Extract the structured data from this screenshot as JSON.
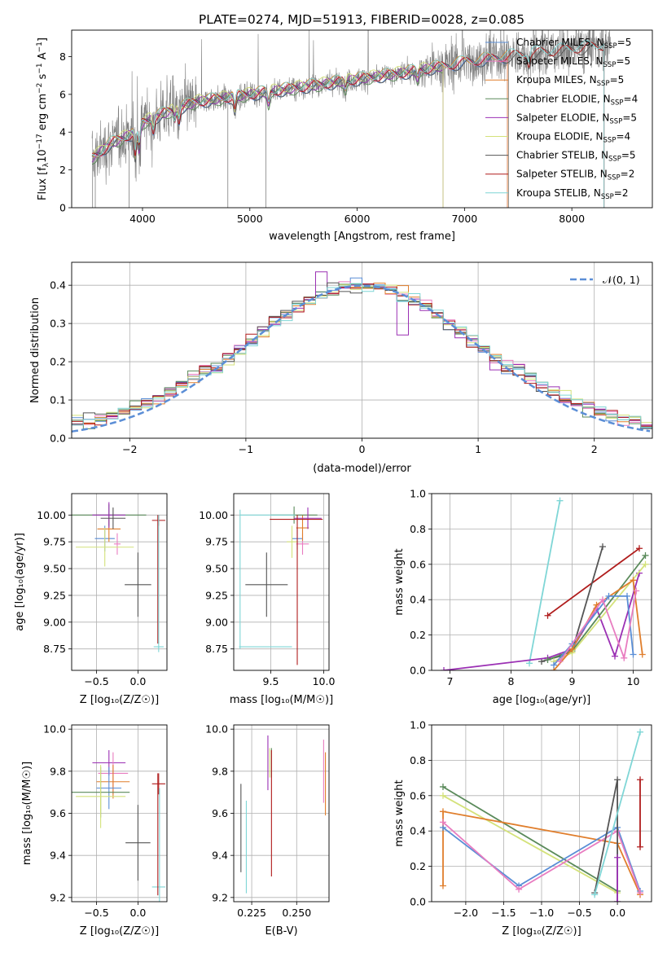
{
  "figure": {
    "title": "PLATE=0274, MJD=51913, FIBERID=0028, z=0.085",
    "colors": {
      "Chabrier MILES": "#5a8ed6",
      "Salpeter MILES": "#e87cc0",
      "Kroupa MILES": "#e07e2c",
      "Chabrier ELODIE": "#5a8a5a",
      "Salpeter ELODIE": "#9b30b4",
      "Kroupa ELODIE": "#d4e27a",
      "Chabrier STELIB": "#555555",
      "Salpeter STELIB": "#b01c1c",
      "Kroupa STELIB": "#7fd6d6",
      "data": "#808080",
      "gaussian": "#5b8ed6"
    },
    "legend_prefixes": [
      "Chabrier MILES, N",
      "Salpeter MILES, N",
      "Kroupa MILES, N",
      "Chabrier ELODIE, N",
      "Salpeter ELODIE, N",
      "Kroupa ELODIE, N",
      "Chabrier STELIB, N",
      "Salpeter STELIB, N",
      "Kroupa STELIB, N"
    ],
    "legend_subscript": "SSP",
    "legend_suffixes": [
      "=5",
      "=5",
      "=5",
      "=4",
      "=5",
      "=4",
      "=5",
      "=2",
      "=2"
    ]
  },
  "chart_data": [
    {
      "id": "spectrum",
      "type": "line",
      "title": "PLATE=0274, MJD=51913, FIBERID=0028, z=0.085",
      "xlabel": "wavelength [Angstrom, rest frame]",
      "ylabel_pre": "Flux [f",
      "ylabel_sub": "λ",
      "ylabel_mid": "10",
      "ylabel_sup1": "−17",
      "ylabel_mid2": " erg cm",
      "ylabel_sup2": "−2",
      "ylabel_mid3": " s",
      "ylabel_sup3": "−1",
      "ylabel_post": " A",
      "ylabel_sup4": "−1",
      "ylabel_end": "]",
      "xlim": [
        3340,
        8750
      ],
      "ylim": [
        0,
        9.4
      ],
      "xticks": [
        "4000",
        "5000",
        "6000",
        "7000",
        "8000"
      ],
      "yticks": [
        "0",
        "2",
        "4",
        "6",
        "8"
      ],
      "continuum_knots": [
        [
          3520,
          2.6
        ],
        [
          3600,
          2.9
        ],
        [
          3700,
          3.4
        ],
        [
          3900,
          3.9
        ],
        [
          4000,
          4.5
        ],
        [
          4200,
          5.0
        ],
        [
          4500,
          5.6
        ],
        [
          5000,
          6.0
        ],
        [
          5500,
          6.4
        ],
        [
          6000,
          6.8
        ],
        [
          6500,
          7.2
        ],
        [
          7000,
          7.7
        ],
        [
          7500,
          8.1
        ],
        [
          8000,
          8.4
        ],
        [
          8300,
          8.6
        ]
      ],
      "series_names": [
        "Chabrier MILES",
        "Salpeter MILES",
        "Kroupa MILES",
        "Chabrier ELODIE",
        "Salpeter ELODIE",
        "Kroupa ELODIE",
        "Chabrier STELIB",
        "Salpeter STELIB",
        "Kroupa STELIB"
      ],
      "series_ranges": [
        [
          3530,
          7400
        ],
        [
          3530,
          7400
        ],
        [
          3530,
          7400
        ],
        [
          3530,
          6800
        ],
        [
          3530,
          6800
        ],
        [
          3530,
          6800
        ],
        [
          3530,
          8300
        ],
        [
          3530,
          8300
        ],
        [
          3530,
          8300
        ]
      ],
      "legend": "upper right"
    },
    {
      "id": "residuals",
      "type": "step",
      "xlabel": "(data-model)/error",
      "ylabel": "Normed distribution",
      "xlim": [
        -2.5,
        2.5
      ],
      "ylim": [
        0,
        0.46
      ],
      "xticks": [
        "−2",
        "−1",
        "0",
        "1",
        "2"
      ],
      "yticks": [
        "0.0",
        "0.1",
        "0.2",
        "0.3",
        "0.4"
      ],
      "gaussian_label": "𝒩(0, 1)",
      "bin_width": 0.1,
      "grid": true,
      "legend": "upper right"
    },
    {
      "id": "age_vs_Z",
      "type": "errorbar",
      "xlabel": "Z [log₁₀(Z/Z☉)]",
      "ylabel": "age  [log₁₀(age/yr)]",
      "xlim": [
        -0.8,
        0.35
      ],
      "ylim": [
        8.55,
        10.2
      ],
      "xticks": [
        "−0.5",
        "0.0"
      ],
      "yticks": [
        "8.75",
        "9.00",
        "9.25",
        "9.50",
        "9.75",
        "10.00"
      ],
      "points": [
        {
          "s": "Chabrier MILES",
          "x": -0.4,
          "xe": 0.12,
          "y": 9.78,
          "ye": 0.12
        },
        {
          "s": "Salpeter MILES",
          "x": -0.25,
          "xe": 0.04,
          "y": 9.73,
          "ye": 0.1
        },
        {
          "s": "Kroupa MILES",
          "x": -0.35,
          "xe": 0.14,
          "y": 9.87,
          "ye": 0.12
        },
        {
          "s": "Chabrier ELODIE",
          "x": -0.35,
          "xe": 0.45,
          "y": 10.0,
          "ye": 0.1
        },
        {
          "s": "Salpeter ELODIE",
          "x": -0.35,
          "xe": 0.2,
          "y": 10.0,
          "ye": 0.12
        },
        {
          "s": "Kroupa ELODIE",
          "x": -0.4,
          "xe": 0.35,
          "y": 9.7,
          "ye": 0.18
        },
        {
          "s": "Chabrier STELIB",
          "x": 0.0,
          "xe": 0.16,
          "y": 9.35,
          "ye": 0.3
        },
        {
          "s": "Salpeter STELIB",
          "x": 0.25,
          "xe": 0.08,
          "y": 9.95,
          "ye": 0.05
        },
        {
          "s": "Kroupa STELIB",
          "x": 0.25,
          "xe": 0.06,
          "y": 8.77,
          "ye": 0.05
        },
        {
          "s": "Chabrier STELIB",
          "x": -0.3,
          "xe": 0.15,
          "y": 9.97,
          "ye": 0.1
        },
        {
          "s": "Salpeter STELIB",
          "x": 0.24,
          "xe": 0.0,
          "y": 9.4,
          "ye": 0.6
        },
        {
          "s": "Kroupa STELIB",
          "x": 0.25,
          "xe": 0.0,
          "y": 9.4,
          "ye": 0.6
        }
      ]
    },
    {
      "id": "age_vs_mass",
      "type": "errorbar",
      "xlabel": "mass [log₁₀(M/M☉)]",
      "xlim": [
        9.15,
        10.05
      ],
      "ylim": [
        8.55,
        10.2
      ],
      "xticks": [
        "9.5",
        "10.0"
      ],
      "yticks": [
        "8.75",
        "9.00",
        "9.25",
        "9.50",
        "9.75",
        "10.00"
      ],
      "points": [
        {
          "s": "Chabrier MILES",
          "x": 9.75,
          "xe": 0.05,
          "y": 9.78,
          "ye": 0.1
        },
        {
          "s": "Salpeter MILES",
          "x": 9.8,
          "xe": 0.06,
          "y": 9.73,
          "ye": 0.1
        },
        {
          "s": "Kroupa MILES",
          "x": 9.8,
          "xe": 0.06,
          "y": 9.88,
          "ye": 0.12
        },
        {
          "s": "Chabrier ELODIE",
          "x": 9.72,
          "xe": 0.22,
          "y": 10.0,
          "ye": 0.08
        },
        {
          "s": "Salpeter ELODIE",
          "x": 9.85,
          "xe": 0.13,
          "y": 9.97,
          "ye": 0.1
        },
        {
          "s": "Kroupa ELODIE",
          "x": 9.7,
          "xe": 0.05,
          "y": 9.75,
          "ye": 0.15
        },
        {
          "s": "Chabrier STELIB",
          "x": 9.46,
          "xe": 0.2,
          "y": 9.35,
          "ye": 0.3
        },
        {
          "s": "Salpeter STELIB",
          "x": 9.74,
          "xe": 0.25,
          "y": 9.96,
          "ye": 0.0
        },
        {
          "s": "Kroupa STELIB",
          "x": 9.47,
          "xe": 0.26,
          "y": 10.0,
          "ye": 0.0
        },
        {
          "s": "Salpeter STELIB",
          "x": 9.75,
          "xe": 0.0,
          "y": 9.3,
          "ye": 0.7
        },
        {
          "s": "Kroupa STELIB",
          "x": 9.21,
          "xe": 0.0,
          "y": 9.4,
          "ye": 0.65
        },
        {
          "s": "Kroupa STELIB",
          "x": 9.45,
          "xe": 0.25,
          "y": 8.77,
          "ye": 0.0
        }
      ]
    },
    {
      "id": "mw_vs_age",
      "type": "line",
      "xlabel": "age  [log₁₀(age/yr)]",
      "ylabel": "mass weight",
      "xlim": [
        6.7,
        10.3
      ],
      "ylim": [
        0,
        1.0
      ],
      "xticks": [
        "7",
        "8",
        "9",
        "10"
      ],
      "yticks": [
        "0.0",
        "0.2",
        "0.4",
        "0.6",
        "0.8",
        "1.0"
      ],
      "lines": [
        {
          "s": "Kroupa STELIB",
          "pts": [
            [
              8.3,
              0.04
            ],
            [
              8.8,
              0.96
            ]
          ]
        },
        {
          "s": "Salpeter STELIB",
          "pts": [
            [
              8.6,
              0.31
            ],
            [
              10.1,
              0.69
            ]
          ]
        },
        {
          "s": "Chabrier STELIB",
          "pts": [
            [
              8.5,
              0.05
            ],
            [
              8.8,
              0.08
            ],
            [
              9.0,
              0.11
            ],
            [
              9.5,
              0.7
            ]
          ]
        },
        {
          "s": "Salpeter ELODIE",
          "pts": [
            [
              6.9,
              0.0
            ],
            [
              8.6,
              0.07
            ],
            [
              9.0,
              0.12
            ],
            [
              9.4,
              0.35
            ],
            [
              9.7,
              0.08
            ],
            [
              10.1,
              0.55
            ]
          ]
        },
        {
          "s": "Chabrier ELODIE",
          "pts": [
            [
              8.6,
              0.06
            ],
            [
              9.0,
              0.11
            ],
            [
              10.2,
              0.65
            ]
          ]
        },
        {
          "s": "Kroupa ELODIE",
          "pts": [
            [
              8.7,
              0.05
            ],
            [
              9.0,
              0.1
            ],
            [
              10.2,
              0.6
            ]
          ]
        },
        {
          "s": "Kroupa MILES",
          "pts": [
            [
              8.7,
              0.0
            ],
            [
              9.0,
              0.12
            ],
            [
              9.4,
              0.37
            ],
            [
              10.0,
              0.51
            ],
            [
              10.15,
              0.09
            ]
          ]
        },
        {
          "s": "Chabrier MILES",
          "pts": [
            [
              8.7,
              0.03
            ],
            [
              9.0,
              0.15
            ],
            [
              9.6,
              0.42
            ],
            [
              9.9,
              0.42
            ],
            [
              10.0,
              0.09
            ]
          ]
        },
        {
          "s": "Salpeter MILES",
          "pts": [
            [
              8.8,
              0.05
            ],
            [
              9.5,
              0.4
            ],
            [
              9.85,
              0.07
            ],
            [
              10.05,
              0.45
            ]
          ]
        }
      ]
    },
    {
      "id": "mass_vs_Z",
      "type": "errorbar",
      "xlabel": "Z [log₁₀(Z/Z☉)]",
      "ylabel": "mass [log₁₀(M/M☉)]",
      "xlim": [
        -0.8,
        0.35
      ],
      "ylim": [
        9.18,
        10.02
      ],
      "xticks": [
        "−0.5",
        "0.0"
      ],
      "yticks": [
        "9.2",
        "9.4",
        "9.6",
        "9.8",
        "10.0"
      ],
      "points": [
        {
          "s": "Salpeter ELODIE",
          "x": -0.35,
          "xe": 0.2,
          "y": 9.84,
          "ye": 0.06
        },
        {
          "s": "Salpeter MILES",
          "x": -0.3,
          "xe": 0.18,
          "y": 9.79,
          "ye": 0.1
        },
        {
          "s": "Kroupa MILES",
          "x": -0.3,
          "xe": 0.2,
          "y": 9.75,
          "ye": 0.08
        },
        {
          "s": "Chabrier MILES",
          "x": -0.35,
          "xe": 0.15,
          "y": 9.72,
          "ye": 0.1
        },
        {
          "s": "Chabrier ELODIE",
          "x": -0.45,
          "xe": 0.35,
          "y": 9.7,
          "ye": 0.12
        },
        {
          "s": "Kroupa ELODIE",
          "x": -0.45,
          "xe": 0.3,
          "y": 9.68,
          "ye": 0.15
        },
        {
          "s": "Salpeter STELIB",
          "x": 0.25,
          "xe": 0.08,
          "y": 9.74,
          "ye": 0.05
        },
        {
          "s": "Chabrier STELIB",
          "x": 0.0,
          "xe": 0.15,
          "y": 9.46,
          "ye": 0.18
        },
        {
          "s": "Kroupa STELIB",
          "x": 0.25,
          "xe": 0.08,
          "y": 9.25,
          "ye": 0.0
        },
        {
          "s": "Salpeter STELIB",
          "x": 0.24,
          "xe": 0.0,
          "y": 9.5,
          "ye": 0.29
        },
        {
          "s": "Kroupa STELIB",
          "x": 0.26,
          "xe": 0.0,
          "y": 9.45,
          "ye": 0.27
        }
      ]
    },
    {
      "id": "mass_vs_ebv",
      "type": "errorbar",
      "xlabel": "E(B-V)",
      "xlim": [
        0.215,
        0.268
      ],
      "ylim": [
        9.18,
        10.02
      ],
      "xticks": [
        "0.225",
        "0.250"
      ],
      "yticks": [
        "9.2",
        "9.4",
        "9.6",
        "9.8",
        "10.0"
      ],
      "points": [
        {
          "s": "Chabrier STELIB",
          "x": 0.219,
          "xe": 0.0,
          "y": 9.53,
          "ye": 0.21
        },
        {
          "s": "Kroupa STELIB",
          "x": 0.222,
          "xe": 0.0,
          "y": 9.44,
          "ye": 0.22
        },
        {
          "s": "Salpeter ELODIE",
          "x": 0.234,
          "xe": 0.0,
          "y": 9.84,
          "ye": 0.13
        },
        {
          "s": "Kroupa ELODIE",
          "x": 0.235,
          "xe": 0.0,
          "y": 9.84,
          "ye": 0.07
        },
        {
          "s": "Chabrier ELODIE",
          "x": 0.236,
          "xe": 0.0,
          "y": 9.84,
          "ye": 0.07
        },
        {
          "s": "Salpeter STELIB",
          "x": 0.236,
          "xe": 0.0,
          "y": 9.6,
          "ye": 0.3
        },
        {
          "s": "Salpeter MILES",
          "x": 0.265,
          "xe": 0.0,
          "y": 9.8,
          "ye": 0.15
        },
        {
          "s": "Kroupa MILES",
          "x": 0.266,
          "xe": 0.0,
          "y": 9.74,
          "ye": 0.15
        }
      ]
    },
    {
      "id": "mw_vs_Z",
      "type": "line",
      "xlabel": "Z [log₁₀(Z/Z☉)]",
      "ylabel": "mass weight",
      "xlim": [
        -2.45,
        0.45
      ],
      "ylim": [
        0,
        1.0
      ],
      "xticks": [
        "−2.0",
        "−1.5",
        "−1.0",
        "−0.5",
        "0.0"
      ],
      "yticks": [
        "0.0",
        "0.2",
        "0.4",
        "0.6",
        "0.8",
        "1.0"
      ],
      "lines": [
        {
          "s": "Chabrier ELODIE",
          "pts": [
            [
              -2.3,
              0.65
            ],
            [
              0.0,
              0.06
            ]
          ]
        },
        {
          "s": "Kroupa ELODIE",
          "pts": [
            [
              -2.3,
              0.6
            ],
            [
              0.0,
              0.05
            ]
          ]
        },
        {
          "s": "Kroupa MILES",
          "pts": [
            [
              -2.3,
              0.09
            ],
            [
              -2.3,
              0.51
            ],
            [
              0.0,
              0.33
            ],
            [
              0.3,
              0.04
            ]
          ]
        },
        {
          "s": "Chabrier MILES",
          "pts": [
            [
              -2.3,
              0.42
            ],
            [
              -1.3,
              0.09
            ],
            [
              0.0,
              0.42
            ],
            [
              0.3,
              0.06
            ]
          ]
        },
        {
          "s": "Salpeter MILES",
          "pts": [
            [
              -2.3,
              0.45
            ],
            [
              -1.3,
              0.07
            ],
            [
              0.0,
              0.4
            ],
            [
              0.3,
              0.05
            ]
          ]
        },
        {
          "s": "Chabrier STELIB",
          "pts": [
            [
              -0.3,
              0.05
            ],
            [
              0.0,
              0.69
            ],
            [
              0.0,
              0.0
            ]
          ]
        },
        {
          "s": "Kroupa STELIB",
          "pts": [
            [
              -0.3,
              0.04
            ],
            [
              0.3,
              0.96
            ]
          ]
        },
        {
          "s": "Salpeter STELIB",
          "pts": [
            [
              0.3,
              0.31
            ],
            [
              0.3,
              0.69
            ]
          ]
        },
        {
          "s": "Salpeter ELODIE",
          "pts": [
            [
              0.0,
              0.0
            ],
            [
              0.0,
              0.25
            ]
          ]
        }
      ]
    }
  ]
}
